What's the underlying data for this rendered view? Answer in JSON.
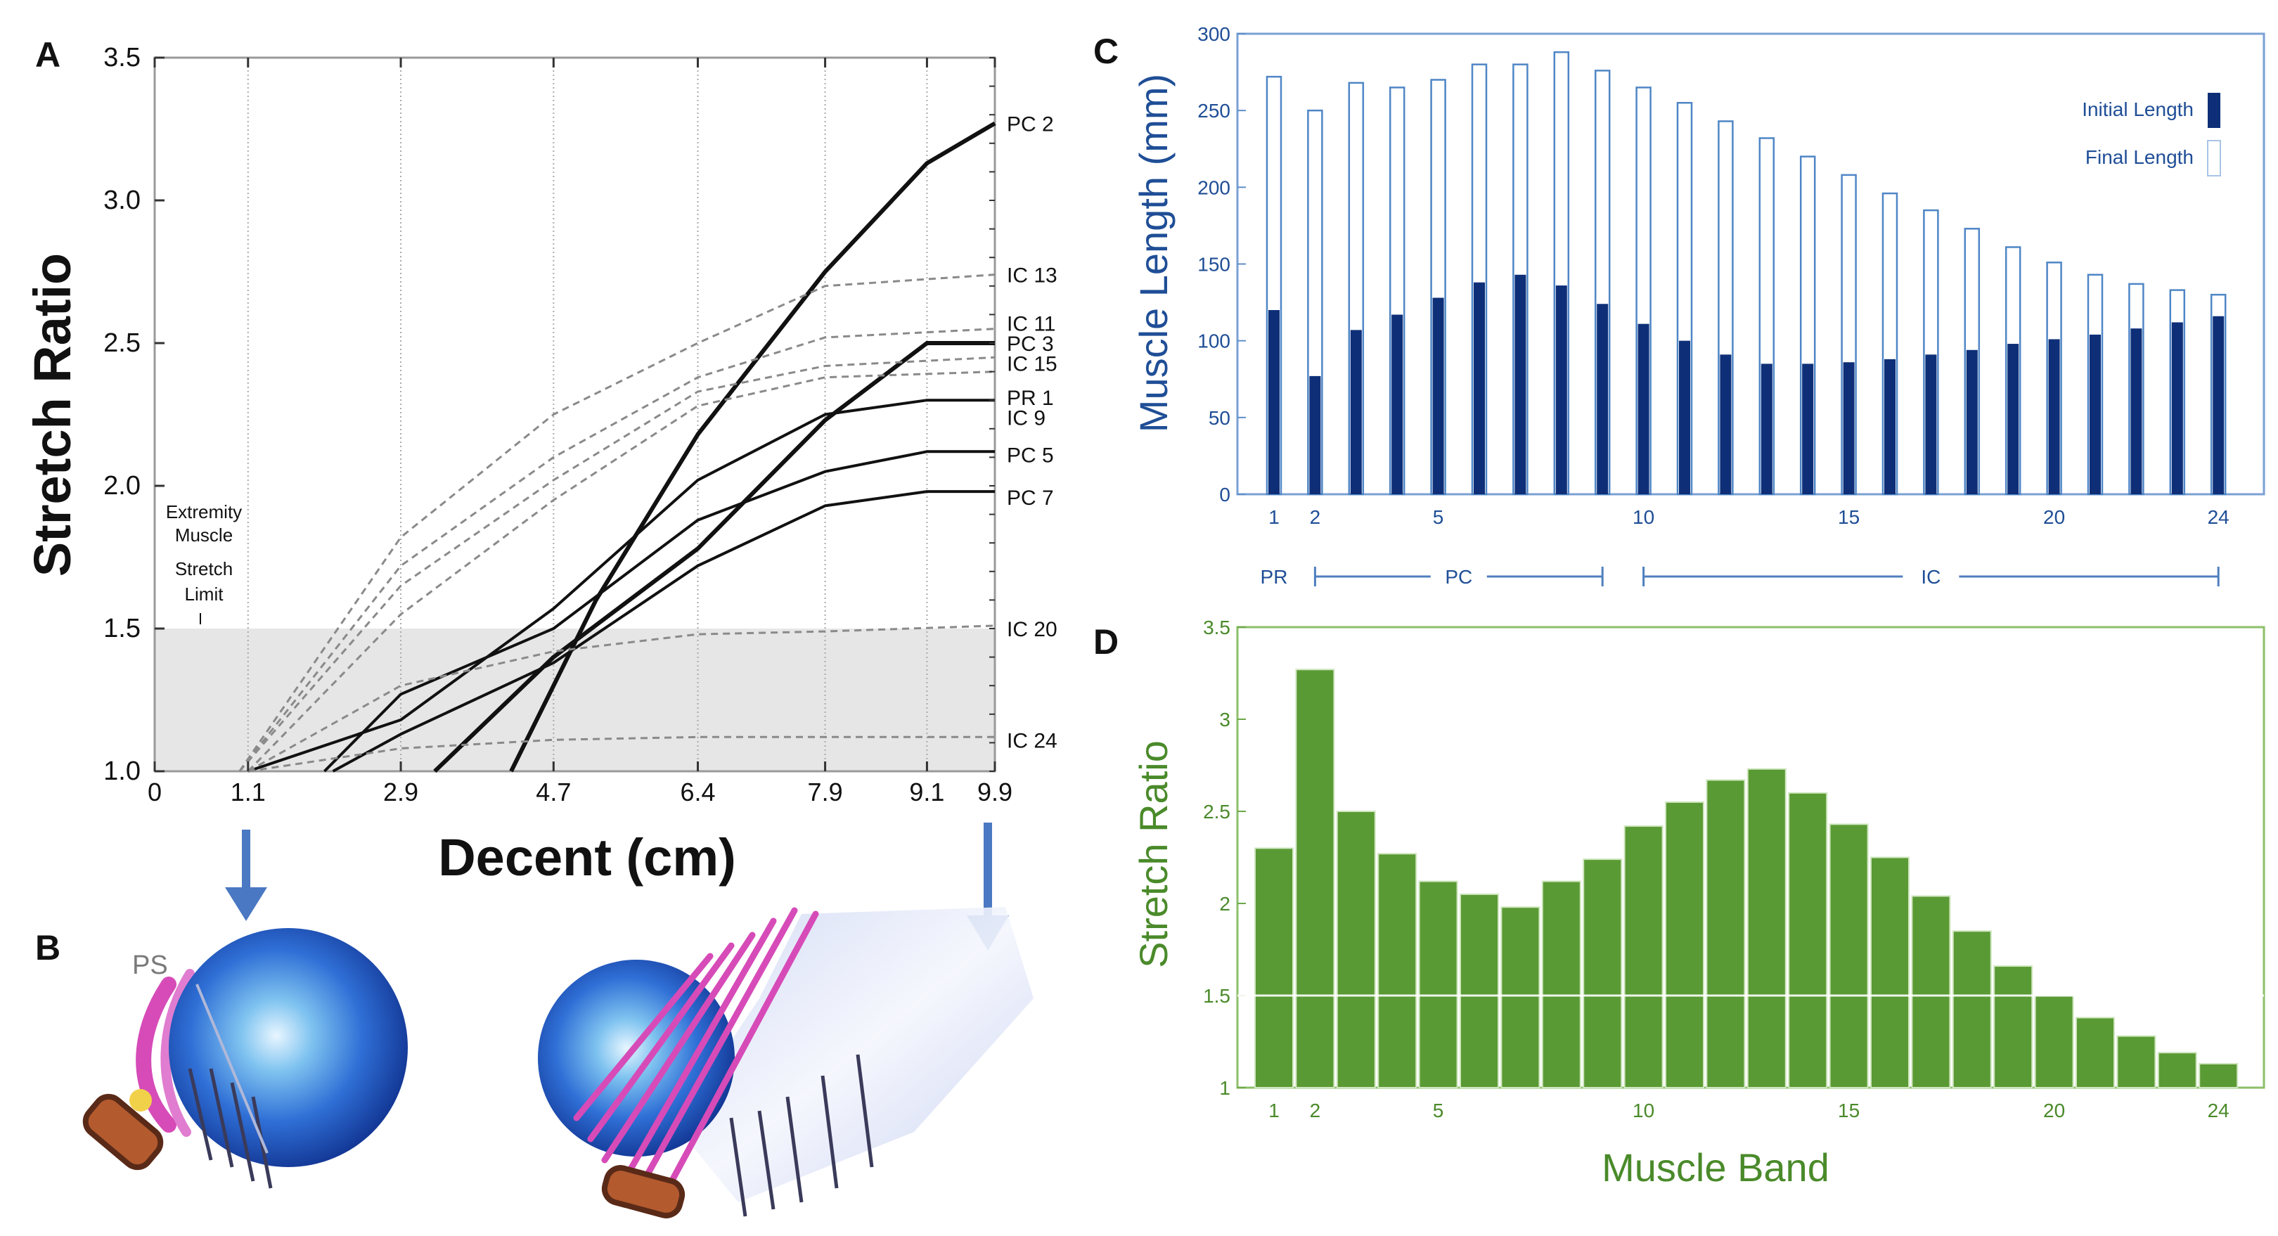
{
  "colors": {
    "black": "#111111",
    "grey_dash": "#8a8a8a",
    "shade": "#e6e6e6",
    "blue": "#1f4e96",
    "dark_blue": "#0e2f78",
    "light_blue_outline": "#5f8fc8",
    "green": "#5a9a34",
    "green_dark": "#3f7d24",
    "green_text": "#4a8a2a",
    "arrow_blue": "#4a78c2",
    "sphere": "#2456c8",
    "pink": "#d64bb8"
  },
  "panels": {
    "a": "A",
    "b": "B",
    "c": "C",
    "d": "D"
  },
  "panel_b": {
    "label_ps": "PS",
    "icons": [
      "sphere-icon",
      "muscle-band-icon",
      "pubic-symphysis-icon",
      "descent-arrow-icon"
    ]
  },
  "chart_data": [
    {
      "id": "A",
      "type": "line",
      "title": "",
      "xlabel": "Decent (cm)",
      "ylabel": "Stretch Ratio",
      "xlim": [
        0,
        9.9
      ],
      "ylim": [
        1.0,
        3.5
      ],
      "xticks": [
        0,
        1.1,
        2.9,
        4.7,
        6.4,
        7.9,
        9.1,
        9.9
      ],
      "xtick_labels": [
        "0",
        "1.1",
        "2.9",
        "4.7",
        "6.4",
        "7.9",
        "9.1",
        "9.9"
      ],
      "yticks": [
        1.0,
        1.5,
        2.0,
        2.5,
        3.0,
        3.5
      ],
      "ytick_labels": [
        "1.0",
        "1.5",
        "2.0",
        "2.5",
        "3.0",
        "3.5"
      ],
      "shaded_region": {
        "y_from": 1.0,
        "y_to": 1.5
      },
      "annotation": [
        "Extremity",
        "Muscle",
        "Stretch",
        "Limit"
      ],
      "series": [
        {
          "name": "PC  2",
          "style": "solid",
          "points": [
            [
              4.2,
              1.0
            ],
            [
              5.2,
              1.6
            ],
            [
              6.4,
              2.18
            ],
            [
              7.9,
              2.75
            ],
            [
              9.1,
              3.13
            ],
            [
              9.9,
              3.27
            ]
          ]
        },
        {
          "name": "IC  13",
          "style": "dashed",
          "points": [
            [
              1.0,
              1.0
            ],
            [
              2.9,
              1.82
            ],
            [
              4.7,
              2.25
            ],
            [
              6.4,
              2.5
            ],
            [
              7.9,
              2.7
            ],
            [
              9.9,
              2.74
            ]
          ]
        },
        {
          "name": "IC  11",
          "style": "dashed",
          "points": [
            [
              1.0,
              1.0
            ],
            [
              2.9,
              1.72
            ],
            [
              4.7,
              2.1
            ],
            [
              6.4,
              2.38
            ],
            [
              7.9,
              2.52
            ],
            [
              9.9,
              2.55
            ]
          ]
        },
        {
          "name": "PC  3",
          "style": "solid",
          "points": [
            [
              3.3,
              1.0
            ],
            [
              4.7,
              1.4
            ],
            [
              6.4,
              1.78
            ],
            [
              7.9,
              2.23
            ],
            [
              9.1,
              2.5
            ],
            [
              9.9,
              2.5
            ]
          ]
        },
        {
          "name": "IC  15",
          "style": "dashed",
          "points": [
            [
              1.0,
              1.0
            ],
            [
              2.9,
              1.65
            ],
            [
              4.7,
              2.02
            ],
            [
              6.4,
              2.33
            ],
            [
              7.9,
              2.42
            ],
            [
              9.9,
              2.45
            ]
          ]
        },
        {
          "name": "PR  1",
          "style": "solid",
          "points": [
            [
              1.1,
              1.0
            ],
            [
              2.9,
              1.18
            ],
            [
              4.7,
              1.57
            ],
            [
              6.4,
              2.02
            ],
            [
              7.9,
              2.25
            ],
            [
              9.1,
              2.3
            ],
            [
              9.9,
              2.3
            ]
          ]
        },
        {
          "name": "IC  9",
          "style": "dashed",
          "points": [
            [
              1.1,
              1.0
            ],
            [
              2.9,
              1.55
            ],
            [
              4.7,
              1.95
            ],
            [
              6.4,
              2.28
            ],
            [
              7.9,
              2.38
            ],
            [
              9.9,
              2.4
            ]
          ]
        },
        {
          "name": "PC  5",
          "style": "solid",
          "points": [
            [
              2.0,
              1.0
            ],
            [
              2.9,
              1.27
            ],
            [
              4.7,
              1.5
            ],
            [
              6.4,
              1.88
            ],
            [
              7.9,
              2.05
            ],
            [
              9.1,
              2.12
            ],
            [
              9.9,
              2.12
            ]
          ]
        },
        {
          "name": "PC  7",
          "style": "solid",
          "points": [
            [
              2.1,
              1.0
            ],
            [
              2.9,
              1.13
            ],
            [
              4.7,
              1.38
            ],
            [
              6.4,
              1.72
            ],
            [
              7.9,
              1.93
            ],
            [
              9.1,
              1.98
            ],
            [
              9.9,
              1.98
            ]
          ]
        },
        {
          "name": "IC  20",
          "style": "dashed",
          "points": [
            [
              1.1,
              1.0
            ],
            [
              2.9,
              1.3
            ],
            [
              4.7,
              1.42
            ],
            [
              6.4,
              1.48
            ],
            [
              7.9,
              1.49
            ],
            [
              9.9,
              1.51
            ]
          ]
        },
        {
          "name": "IC  24",
          "style": "dashed",
          "points": [
            [
              1.1,
              1.0
            ],
            [
              2.9,
              1.08
            ],
            [
              4.7,
              1.11
            ],
            [
              6.4,
              1.12
            ],
            [
              7.9,
              1.12
            ],
            [
              9.9,
              1.12
            ]
          ]
        }
      ],
      "series_labels": [
        {
          "label": "PC  2",
          "y": 3.27
        },
        {
          "label": "IC  13",
          "y": 2.74
        },
        {
          "label": "IC  11",
          "y": 2.57
        },
        {
          "label": "PC  3",
          "y": 2.5
        },
        {
          "label": "IC  15",
          "y": 2.43
        },
        {
          "label": "PR  1",
          "y": 2.31
        },
        {
          "label": "IC  9",
          "y": 2.24
        },
        {
          "label": "PC  5",
          "y": 2.11
        },
        {
          "label": "PC  7",
          "y": 1.96
        },
        {
          "label": "IC  20",
          "y": 1.5
        },
        {
          "label": "IC  24",
          "y": 1.11
        }
      ]
    },
    {
      "id": "C",
      "type": "bar",
      "title": "",
      "xlabel": "",
      "ylabel": "Muscle Length (mm)",
      "ylim": [
        0,
        300
      ],
      "yticks": [
        0,
        50,
        100,
        150,
        200,
        250,
        300
      ],
      "ytick_labels": [
        "0",
        "50",
        "100",
        "150",
        "200",
        "250",
        "300"
      ],
      "categories": [
        1,
        2,
        3,
        4,
        5,
        6,
        7,
        8,
        9,
        10,
        11,
        12,
        13,
        14,
        15,
        16,
        17,
        18,
        19,
        20,
        21,
        22,
        23,
        24
      ],
      "xtick_labels": [
        "1",
        "2",
        "5",
        "10",
        "15",
        "20",
        "24"
      ],
      "xtick_positions": [
        1,
        2,
        5,
        10,
        15,
        20,
        24
      ],
      "series": [
        {
          "name": "Initial Length",
          "values": [
            120,
            77,
            107,
            117,
            128,
            138,
            143,
            136,
            124,
            111,
            100,
            91,
            85,
            85,
            86,
            88,
            91,
            94,
            98,
            101,
            104,
            108,
            112,
            116
          ]
        },
        {
          "name": "Final Length",
          "values": [
            272,
            250,
            268,
            265,
            270,
            280,
            280,
            288,
            276,
            265,
            255,
            243,
            232,
            220,
            208,
            196,
            185,
            173,
            161,
            151,
            143,
            137,
            133,
            130
          ]
        }
      ],
      "legend": {
        "position": "top-right",
        "entries": [
          "Initial Length",
          "Final Length"
        ]
      },
      "groups": [
        {
          "label": "PR",
          "from": 1,
          "to": 1
        },
        {
          "label": "PC",
          "from": 2,
          "to": 9
        },
        {
          "label": "IC",
          "from": 10,
          "to": 24
        }
      ]
    },
    {
      "id": "D",
      "type": "bar",
      "title": "",
      "xlabel": "Muscle Band",
      "ylabel": "Stretch Ratio",
      "ylim": [
        1,
        3.5
      ],
      "yticks": [
        1,
        1.5,
        2,
        2.5,
        3,
        3.5
      ],
      "ytick_labels": [
        "1",
        "1.5",
        "2",
        "2.5",
        "3",
        "3.5"
      ],
      "categories": [
        1,
        2,
        3,
        4,
        5,
        6,
        7,
        8,
        9,
        10,
        11,
        12,
        13,
        14,
        15,
        16,
        17,
        18,
        19,
        20,
        21,
        22,
        23,
        24
      ],
      "xtick_labels": [
        "1",
        "2",
        "5",
        "10",
        "15",
        "20",
        "24"
      ],
      "xtick_positions": [
        1,
        2,
        5,
        10,
        15,
        20,
        24
      ],
      "values": [
        2.3,
        3.27,
        2.5,
        2.27,
        2.12,
        2.05,
        1.98,
        2.12,
        2.24,
        2.42,
        2.55,
        2.67,
        2.73,
        2.6,
        2.43,
        2.25,
        2.04,
        1.85,
        1.66,
        1.5,
        1.38,
        1.28,
        1.19,
        1.13
      ],
      "gridline": 1.5
    }
  ]
}
